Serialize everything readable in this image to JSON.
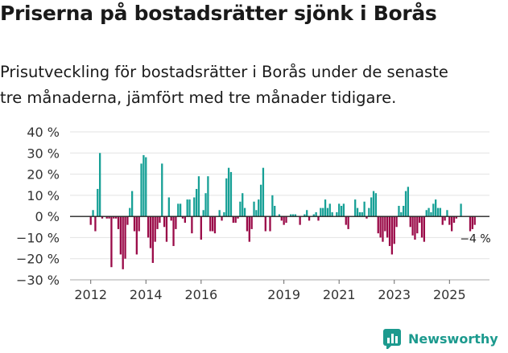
{
  "header": {
    "title": "Priserna på bostadsrätter sjönk i Borås",
    "subtitle_line1": "Prisutveckling för bostadsrätter i Borås under de senaste",
    "subtitle_line2": "tre månaderna, jämfört med tre månader tidigare."
  },
  "brand": {
    "name": "Newsworthy",
    "icon": "bar-chart-logo-icon",
    "color": "#1c9a8e"
  },
  "colors": {
    "positive": "#17a096",
    "negative": "#9a0a48",
    "grid": "#e3e3e3",
    "zero": "#222222"
  },
  "chart_data": {
    "type": "bar",
    "title": "Priserna på bostadsrätter sjönk i Borås",
    "xlabel": "",
    "ylabel": "",
    "ylim": [
      -30,
      40
    ],
    "yticks": [
      40,
      30,
      20,
      10,
      0,
      -10,
      -20,
      -30
    ],
    "ytick_labels": [
      "40 %",
      "30 %",
      "20 %",
      "10 %",
      "0 %",
      "−10 %",
      "−20 %",
      "−30 %"
    ],
    "xticks": [
      {
        "label": "2012",
        "x": 2012.0
      },
      {
        "label": "2014",
        "x": 2014.0
      },
      {
        "label": "2016",
        "x": 2016.0
      },
      {
        "label": "2019",
        "x": 2019.0
      },
      {
        "label": "2021",
        "x": 2021.0
      },
      {
        "label": "2023",
        "x": 2023.0
      },
      {
        "label": "2025",
        "x": 2025.0
      }
    ],
    "xrange": [
      2011.25,
      2026.45
    ],
    "x_start": 2012.0,
    "x_step": 0.0833333,
    "values": [
      -4,
      3,
      -7,
      13,
      30,
      -1,
      0,
      -1,
      -1,
      -24,
      -1,
      -1,
      -6,
      -18,
      -25,
      -20,
      -4,
      4,
      12,
      -7,
      -18,
      -7,
      25,
      29,
      28,
      -10,
      -15,
      -22,
      -12,
      -6,
      -3,
      25,
      -5,
      -12,
      9,
      -2,
      -14,
      -6,
      6,
      6,
      -1,
      -3,
      8,
      8,
      -8,
      9,
      13,
      19,
      -11,
      3,
      11,
      19,
      -7,
      -7,
      -8,
      0,
      3,
      -2,
      2,
      18,
      23,
      21,
      -3,
      -3,
      -1,
      7,
      11,
      4,
      -7,
      -12,
      -6,
      7,
      3,
      8,
      15,
      23,
      -7,
      0,
      -7,
      10,
      5,
      0,
      1,
      -2,
      -4,
      -3,
      0,
      1,
      1,
      1,
      0,
      -4,
      0,
      1,
      3,
      -2,
      0,
      1,
      2,
      -2,
      4,
      4,
      8,
      4,
      6,
      2,
      0,
      2,
      6,
      5,
      6,
      -4,
      -6,
      0,
      0,
      8,
      4,
      2,
      2,
      7,
      -1,
      4,
      9,
      12,
      11,
      -8,
      -10,
      -12,
      -7,
      -10,
      -14,
      -18,
      -13,
      -5,
      5,
      2,
      5,
      12,
      14,
      -5,
      -9,
      -11,
      -8,
      -3,
      -10,
      -12,
      3,
      4,
      2,
      6,
      8,
      4,
      4,
      -4,
      -2,
      3,
      -4,
      -7,
      -3,
      -1,
      0,
      6,
      0,
      0,
      0,
      -7,
      -6,
      -4
    ],
    "annotation": {
      "text": "−4 %",
      "value": -4
    }
  }
}
